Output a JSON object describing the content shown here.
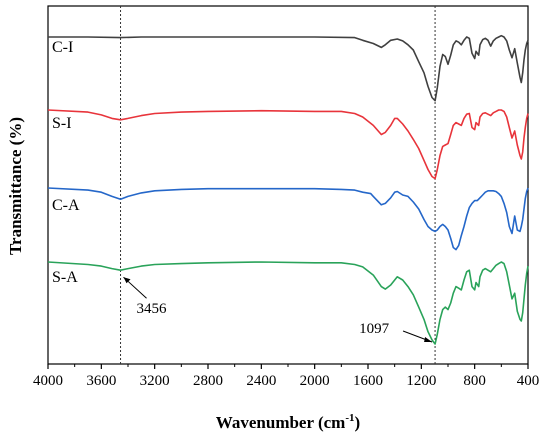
{
  "chart_data": {
    "type": "line",
    "title": "",
    "xlabel": "Wavenumber (cm",
    "xlabel_sup": "-1",
    "xlabel_close": ")",
    "ylabel": "Transmittance (%)",
    "xlim": [
      4000,
      400
    ],
    "x_reversed": true,
    "xticks": [
      4000,
      3600,
      3200,
      2800,
      2400,
      2000,
      1600,
      1200,
      800,
      400
    ],
    "grid": false,
    "reference_lines": [
      3456,
      1097
    ],
    "annotations": [
      {
        "text": "3456",
        "x": 3456,
        "series": "S-A"
      },
      {
        "text": "1097",
        "x": 1097,
        "series": "S-A"
      }
    ],
    "series": [
      {
        "name": "C-I",
        "color": "#404040",
        "points": [
          [
            4000,
            0.0
          ],
          [
            3700,
            0.0
          ],
          [
            3456,
            0.01
          ],
          [
            3300,
            0.0
          ],
          [
            2800,
            0.0
          ],
          [
            2400,
            0.0
          ],
          [
            2000,
            0.0
          ],
          [
            1700,
            0.01
          ],
          [
            1640,
            0.05
          ],
          [
            1560,
            0.1
          ],
          [
            1500,
            0.16
          ],
          [
            1470,
            0.12
          ],
          [
            1430,
            0.05
          ],
          [
            1380,
            0.03
          ],
          [
            1340,
            0.06
          ],
          [
            1300,
            0.12
          ],
          [
            1260,
            0.2
          ],
          [
            1220,
            0.38
          ],
          [
            1180,
            0.55
          ],
          [
            1150,
            0.76
          ],
          [
            1120,
            0.93
          ],
          [
            1097,
            0.98
          ],
          [
            1080,
            0.78
          ],
          [
            1060,
            0.45
          ],
          [
            1040,
            0.27
          ],
          [
            1020,
            0.3
          ],
          [
            1000,
            0.42
          ],
          [
            980,
            0.28
          ],
          [
            960,
            0.12
          ],
          [
            940,
            0.06
          ],
          [
            920,
            0.08
          ],
          [
            900,
            0.12
          ],
          [
            880,
            0.05
          ],
          [
            860,
            0.0
          ],
          [
            840,
            0.02
          ],
          [
            820,
            0.25
          ],
          [
            800,
            0.33
          ],
          [
            790,
            0.22
          ],
          [
            770,
            0.28
          ],
          [
            760,
            0.12
          ],
          [
            740,
            0.04
          ],
          [
            720,
            0.02
          ],
          [
            700,
            0.05
          ],
          [
            680,
            0.14
          ],
          [
            660,
            0.06
          ],
          [
            640,
            0.02
          ],
          [
            620,
            0.0
          ],
          [
            600,
            -0.02
          ],
          [
            580,
            0.0
          ],
          [
            560,
            0.06
          ],
          [
            540,
            0.2
          ],
          [
            520,
            0.32
          ],
          [
            500,
            0.18
          ],
          [
            480,
            0.4
          ],
          [
            460,
            0.62
          ],
          [
            450,
            0.7
          ],
          [
            440,
            0.55
          ],
          [
            430,
            0.35
          ],
          [
            420,
            0.2
          ],
          [
            410,
            0.1
          ],
          [
            400,
            0.05
          ]
        ]
      },
      {
        "name": "S-I",
        "color": "#e8343b",
        "points": [
          [
            4000,
            0.0
          ],
          [
            3700,
            0.03
          ],
          [
            3600,
            0.07
          ],
          [
            3520,
            0.12
          ],
          [
            3456,
            0.14
          ],
          [
            3400,
            0.12
          ],
          [
            3300,
            0.08
          ],
          [
            3200,
            0.05
          ],
          [
            3000,
            0.03
          ],
          [
            2800,
            0.02
          ],
          [
            2400,
            0.01
          ],
          [
            2000,
            0.02
          ],
          [
            1800,
            0.02
          ],
          [
            1700,
            0.05
          ],
          [
            1640,
            0.1
          ],
          [
            1560,
            0.22
          ],
          [
            1500,
            0.35
          ],
          [
            1470,
            0.32
          ],
          [
            1430,
            0.22
          ],
          [
            1400,
            0.12
          ],
          [
            1380,
            0.12
          ],
          [
            1340,
            0.2
          ],
          [
            1300,
            0.3
          ],
          [
            1260,
            0.42
          ],
          [
            1220,
            0.55
          ],
          [
            1180,
            0.72
          ],
          [
            1150,
            0.85
          ],
          [
            1120,
            0.95
          ],
          [
            1097,
            0.98
          ],
          [
            1080,
            0.85
          ],
          [
            1060,
            0.65
          ],
          [
            1040,
            0.52
          ],
          [
            1020,
            0.5
          ],
          [
            1000,
            0.48
          ],
          [
            980,
            0.35
          ],
          [
            960,
            0.22
          ],
          [
            940,
            0.18
          ],
          [
            920,
            0.2
          ],
          [
            900,
            0.22
          ],
          [
            880,
            0.12
          ],
          [
            860,
            0.06
          ],
          [
            840,
            0.05
          ],
          [
            820,
            0.25
          ],
          [
            800,
            0.28
          ],
          [
            790,
            0.18
          ],
          [
            770,
            0.22
          ],
          [
            760,
            0.1
          ],
          [
            740,
            0.05
          ],
          [
            720,
            0.04
          ],
          [
            700,
            0.06
          ],
          [
            680,
            0.08
          ],
          [
            660,
            0.04
          ],
          [
            640,
            0.02
          ],
          [
            620,
            0.0
          ],
          [
            600,
            0.0
          ],
          [
            580,
            0.02
          ],
          [
            560,
            0.1
          ],
          [
            540,
            0.25
          ],
          [
            520,
            0.4
          ],
          [
            500,
            0.3
          ],
          [
            480,
            0.5
          ],
          [
            460,
            0.65
          ],
          [
            450,
            0.7
          ],
          [
            440,
            0.6
          ],
          [
            430,
            0.4
          ],
          [
            420,
            0.25
          ],
          [
            410,
            0.12
          ],
          [
            400,
            0.05
          ]
        ]
      },
      {
        "name": "C-A",
        "color": "#2567c9",
        "points": [
          [
            4000,
            0.0
          ],
          [
            3700,
            0.03
          ],
          [
            3600,
            0.06
          ],
          [
            3520,
            0.12
          ],
          [
            3456,
            0.16
          ],
          [
            3400,
            0.12
          ],
          [
            3300,
            0.07
          ],
          [
            3200,
            0.04
          ],
          [
            3000,
            0.02
          ],
          [
            2800,
            0.01
          ],
          [
            2400,
            0.01
          ],
          [
            2000,
            0.01
          ],
          [
            1800,
            0.02
          ],
          [
            1700,
            0.03
          ],
          [
            1640,
            0.06
          ],
          [
            1580,
            0.08
          ],
          [
            1560,
            0.12
          ],
          [
            1500,
            0.24
          ],
          [
            1470,
            0.22
          ],
          [
            1430,
            0.14
          ],
          [
            1400,
            0.06
          ],
          [
            1380,
            0.05
          ],
          [
            1340,
            0.1
          ],
          [
            1300,
            0.12
          ],
          [
            1260,
            0.2
          ],
          [
            1220,
            0.3
          ],
          [
            1180,
            0.45
          ],
          [
            1150,
            0.55
          ],
          [
            1120,
            0.6
          ],
          [
            1097,
            0.62
          ],
          [
            1080,
            0.6
          ],
          [
            1060,
            0.55
          ],
          [
            1040,
            0.52
          ],
          [
            1020,
            0.55
          ],
          [
            1000,
            0.6
          ],
          [
            980,
            0.72
          ],
          [
            960,
            0.85
          ],
          [
            940,
            0.88
          ],
          [
            920,
            0.82
          ],
          [
            900,
            0.68
          ],
          [
            880,
            0.55
          ],
          [
            860,
            0.4
          ],
          [
            840,
            0.28
          ],
          [
            820,
            0.22
          ],
          [
            800,
            0.18
          ],
          [
            780,
            0.18
          ],
          [
            760,
            0.14
          ],
          [
            740,
            0.1
          ],
          [
            720,
            0.06
          ],
          [
            700,
            0.04
          ],
          [
            680,
            0.04
          ],
          [
            660,
            0.04
          ],
          [
            640,
            0.05
          ],
          [
            620,
            0.08
          ],
          [
            600,
            0.12
          ],
          [
            580,
            0.22
          ],
          [
            560,
            0.35
          ],
          [
            540,
            0.55
          ],
          [
            520,
            0.65
          ],
          [
            500,
            0.4
          ],
          [
            480,
            0.6
          ],
          [
            460,
            0.62
          ],
          [
            450,
            0.55
          ],
          [
            440,
            0.45
          ],
          [
            430,
            0.3
          ],
          [
            420,
            0.15
          ],
          [
            410,
            0.05
          ],
          [
            400,
            0.0
          ]
        ]
      },
      {
        "name": "S-A",
        "color": "#2aa35a",
        "points": [
          [
            4000,
            0.0
          ],
          [
            3700,
            0.03
          ],
          [
            3600,
            0.05
          ],
          [
            3520,
            0.08
          ],
          [
            3456,
            0.1
          ],
          [
            3400,
            0.08
          ],
          [
            3300,
            0.05
          ],
          [
            3200,
            0.03
          ],
          [
            3000,
            0.02
          ],
          [
            2800,
            0.01
          ],
          [
            2400,
            0.0
          ],
          [
            2000,
            0.01
          ],
          [
            1800,
            0.01
          ],
          [
            1700,
            0.03
          ],
          [
            1640,
            0.06
          ],
          [
            1560,
            0.16
          ],
          [
            1500,
            0.3
          ],
          [
            1470,
            0.33
          ],
          [
            1430,
            0.28
          ],
          [
            1400,
            0.22
          ],
          [
            1380,
            0.18
          ],
          [
            1340,
            0.22
          ],
          [
            1300,
            0.3
          ],
          [
            1260,
            0.4
          ],
          [
            1220,
            0.55
          ],
          [
            1180,
            0.7
          ],
          [
            1150,
            0.85
          ],
          [
            1120,
            0.95
          ],
          [
            1097,
            1.0
          ],
          [
            1080,
            0.88
          ],
          [
            1060,
            0.7
          ],
          [
            1040,
            0.58
          ],
          [
            1020,
            0.55
          ],
          [
            1000,
            0.58
          ],
          [
            980,
            0.5
          ],
          [
            960,
            0.38
          ],
          [
            940,
            0.3
          ],
          [
            920,
            0.32
          ],
          [
            900,
            0.34
          ],
          [
            880,
            0.22
          ],
          [
            860,
            0.12
          ],
          [
            840,
            0.1
          ],
          [
            820,
            0.3
          ],
          [
            800,
            0.34
          ],
          [
            790,
            0.25
          ],
          [
            770,
            0.3
          ],
          [
            760,
            0.18
          ],
          [
            740,
            0.1
          ],
          [
            720,
            0.08
          ],
          [
            700,
            0.1
          ],
          [
            680,
            0.12
          ],
          [
            660,
            0.08
          ],
          [
            640,
            0.04
          ],
          [
            620,
            0.02
          ],
          [
            600,
            0.0
          ],
          [
            580,
            0.02
          ],
          [
            560,
            0.12
          ],
          [
            540,
            0.28
          ],
          [
            520,
            0.45
          ],
          [
            500,
            0.38
          ],
          [
            480,
            0.6
          ],
          [
            460,
            0.7
          ],
          [
            450,
            0.72
          ],
          [
            440,
            0.62
          ],
          [
            430,
            0.45
          ],
          [
            420,
            0.28
          ],
          [
            410,
            0.14
          ],
          [
            400,
            0.05
          ]
        ]
      }
    ]
  }
}
